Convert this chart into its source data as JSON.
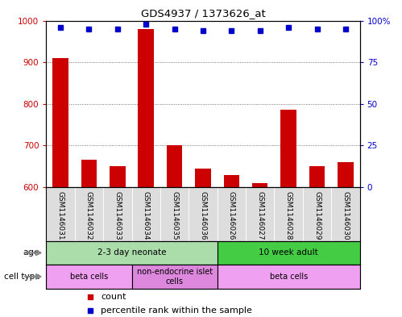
{
  "title": "GDS4937 / 1373626_at",
  "samples": [
    "GSM1146031",
    "GSM1146032",
    "GSM1146033",
    "GSM1146034",
    "GSM1146035",
    "GSM1146036",
    "GSM1146026",
    "GSM1146027",
    "GSM1146028",
    "GSM1146029",
    "GSM1146030"
  ],
  "counts": [
    910,
    665,
    650,
    980,
    700,
    645,
    628,
    610,
    785,
    650,
    660
  ],
  "percentiles": [
    96,
    95,
    95,
    98,
    95,
    94,
    94,
    94,
    96,
    95,
    95
  ],
  "bar_color": "#cc0000",
  "dot_color": "#0000cc",
  "ylim_left": [
    600,
    1000
  ],
  "ylim_right": [
    0,
    100
  ],
  "yticks_left": [
    600,
    700,
    800,
    900,
    1000
  ],
  "yticks_right": [
    0,
    25,
    50,
    75,
    100
  ],
  "age_groups": [
    {
      "label": "2-3 day neonate",
      "start": 0,
      "end": 6,
      "color": "#aaddaa"
    },
    {
      "label": "10 week adult",
      "start": 6,
      "end": 11,
      "color": "#44cc44"
    }
  ],
  "cell_type_groups": [
    {
      "label": "beta cells",
      "start": 0,
      "end": 3,
      "color": "#f0a0f0"
    },
    {
      "label": "non-endocrine islet\ncells",
      "start": 3,
      "end": 6,
      "color": "#dd88dd"
    },
    {
      "label": "beta cells",
      "start": 6,
      "end": 11,
      "color": "#f0a0f0"
    }
  ],
  "legend_count_color": "#cc0000",
  "legend_dot_color": "#0000cc",
  "tick_label_color_left": "#cc0000",
  "tick_label_color_right": "#0000cc",
  "grid_color": "#555555",
  "sample_label_bg": "#dddddd",
  "chart_bg": "#ffffff"
}
